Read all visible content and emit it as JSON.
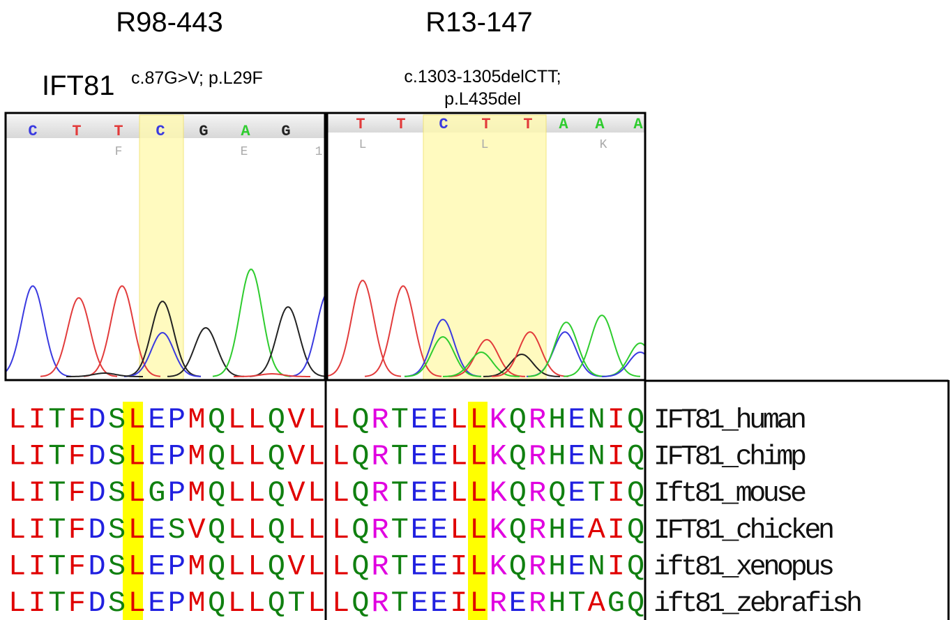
{
  "samples": [
    {
      "title": "R98-443"
    },
    {
      "title": "R13-147"
    }
  ],
  "gene": "IFT81",
  "mutation_left": "c.87G>V; p.L29F",
  "mutation_right": [
    "c.1303-1305delCTT;",
    "p.L435del"
  ],
  "chromatograms": [
    {
      "bases": [
        "C",
        "T",
        "T",
        "C",
        "G",
        "A",
        "G"
      ],
      "amino_acids": [
        "F",
        "E",
        "1"
      ]
    },
    {
      "bases": [
        "T",
        "T",
        "C",
        "T",
        "T",
        "A",
        "A",
        "A"
      ],
      "amino_acids": [
        "L",
        "L",
        "K"
      ]
    }
  ],
  "alignment": {
    "left": [
      "LITFDSLEPMQLLQVL",
      "LITFDSLEPMQLLQVL",
      "LITFDSLGPMQLLQVL",
      "LITFDSLESVQLLQLL",
      "LITFDSLEPMQLLQVL",
      "LITFDSLEPMQLLQTL"
    ],
    "right": [
      "LQRTEELLKQRHENIQ",
      "LQRTEELLKQRHENIQ",
      "LQRTEELLKQRQETIQ",
      "LQRTEELLKQRHEAIQ",
      "LQRTEEILKQRHENIQ",
      "LQRTEEILRERHTAGQ"
    ],
    "species": [
      "IFT81_human",
      "IFT81_chimp",
      "Ift81_mouse",
      "IFT81_chicken",
      "ift81_xenopus",
      "ift81_zebrafish"
    ]
  }
}
